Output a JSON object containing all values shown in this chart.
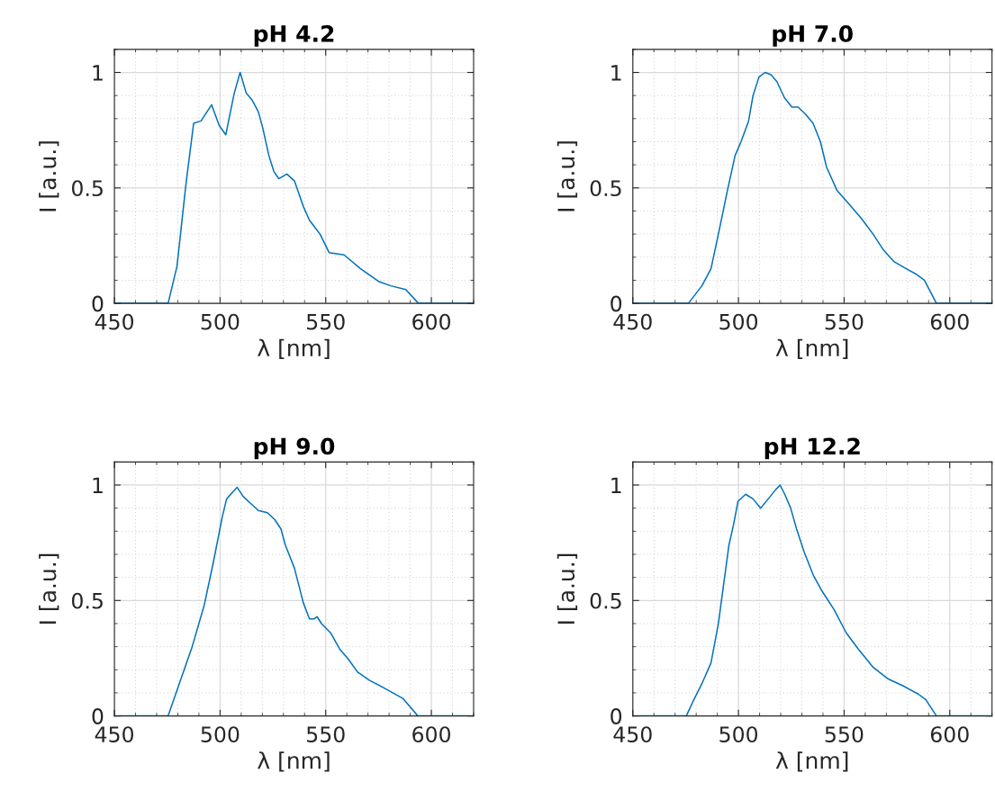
{
  "chart_data": [
    {
      "type": "line",
      "title": "pH 4.2",
      "xlabel": "λ [nm]",
      "ylabel": "I [a.u.]",
      "xlim": [
        450,
        620
      ],
      "ylim": [
        0,
        1.1
      ],
      "xticks": [
        450,
        500,
        550,
        600
      ],
      "yticks": [
        0,
        0.5,
        1
      ],
      "grid": true,
      "series": [
        {
          "color": "#0072bd",
          "x": [
            450,
            475.4,
            479.6,
            483.9,
            487.5,
            491,
            496,
            499.6,
            502.7,
            506.7,
            509.5,
            512.4,
            515.2,
            518.1,
            520.2,
            523.1,
            525.5,
            527.8,
            531.6,
            535.2,
            539.4,
            542.3,
            547.3,
            551.6,
            558.7,
            566.5,
            575,
            580.8,
            587.9,
            593.9,
            620
          ],
          "values": [
            0,
            0,
            0.16,
            0.52,
            0.78,
            0.79,
            0.86,
            0.77,
            0.73,
            0.91,
            1.0,
            0.91,
            0.88,
            0.83,
            0.76,
            0.64,
            0.57,
            0.54,
            0.56,
            0.53,
            0.42,
            0.36,
            0.3,
            0.22,
            0.21,
            0.15,
            0.095,
            0.076,
            0.06,
            0,
            0
          ]
        }
      ]
    },
    {
      "type": "line",
      "title": "pH 7.0",
      "xlabel": "λ [nm]",
      "ylabel": "I [a.u.]",
      "xlim": [
        450,
        620
      ],
      "ylim": [
        0,
        1.1
      ],
      "xticks": [
        450,
        500,
        550,
        600
      ],
      "yticks": [
        0,
        0.5,
        1
      ],
      "grid": true,
      "series": [
        {
          "color": "#0072bd",
          "x": [
            450,
            476.3,
            482.7,
            487,
            490.5,
            494.8,
            498.4,
            501.2,
            504.8,
            506.9,
            509.7,
            512.6,
            515.4,
            518.2,
            521.8,
            525.3,
            528.2,
            531.7,
            535.3,
            538.8,
            541.7,
            546.6,
            552.3,
            558,
            563.7,
            568.7,
            573.7,
            579.4,
            584.4,
            588,
            593.7,
            620
          ],
          "values": [
            0,
            0,
            0.076,
            0.15,
            0.3,
            0.49,
            0.64,
            0.7,
            0.79,
            0.9,
            0.98,
            1.0,
            0.99,
            0.96,
            0.89,
            0.85,
            0.85,
            0.82,
            0.78,
            0.7,
            0.59,
            0.49,
            0.43,
            0.37,
            0.3,
            0.23,
            0.18,
            0.15,
            0.125,
            0.1,
            0,
            0
          ]
        }
      ]
    },
    {
      "type": "line",
      "title": "pH 9.0",
      "xlabel": "λ [nm]",
      "ylabel": "I [a.u.]",
      "xlim": [
        450,
        620
      ],
      "ylim": [
        0,
        1.1
      ],
      "xticks": [
        450,
        500,
        550,
        600
      ],
      "yticks": [
        0,
        0.5,
        1
      ],
      "grid": true,
      "series": [
        {
          "color": "#0072bd",
          "x": [
            450,
            475.4,
            481.1,
            486.8,
            492.5,
            496.7,
            501,
            503.1,
            506,
            508.1,
            511,
            514.5,
            518.1,
            522.4,
            525.9,
            528.8,
            530.9,
            535.2,
            539.4,
            542.3,
            544.4,
            545.9,
            548,
            552.3,
            556.6,
            560.8,
            565.1,
            570.8,
            577.9,
            586.5,
            593.6,
            620
          ],
          "values": [
            0,
            0,
            0.15,
            0.3,
            0.48,
            0.66,
            0.86,
            0.94,
            0.97,
            0.99,
            0.95,
            0.92,
            0.89,
            0.88,
            0.85,
            0.81,
            0.74,
            0.64,
            0.49,
            0.42,
            0.42,
            0.43,
            0.4,
            0.36,
            0.29,
            0.245,
            0.19,
            0.154,
            0.12,
            0.076,
            0,
            0
          ]
        }
      ]
    },
    {
      "type": "line",
      "title": "pH 12.2",
      "xlabel": "λ [nm]",
      "ylabel": "I [a.u.]",
      "xlim": [
        450,
        620
      ],
      "ylim": [
        0,
        1.1
      ],
      "xticks": [
        450,
        500,
        550,
        600
      ],
      "yticks": [
        0,
        0.5,
        1
      ],
      "grid": true,
      "series": [
        {
          "color": "#0072bd",
          "x": [
            450,
            475.3,
            478.5,
            482.7,
            487,
            490.5,
            492.7,
            495.5,
            497.7,
            499.8,
            503.4,
            506.9,
            510.5,
            514.1,
            517.6,
            519.7,
            521.9,
            524.7,
            527.5,
            531.1,
            535.4,
            539.6,
            545.3,
            551,
            556.7,
            563.8,
            570.9,
            578,
            585.1,
            588.7,
            593.7,
            620
          ],
          "values": [
            0,
            0,
            0.063,
            0.14,
            0.23,
            0.4,
            0.55,
            0.74,
            0.83,
            0.93,
            0.96,
            0.94,
            0.9,
            0.94,
            0.98,
            1.0,
            0.96,
            0.9,
            0.81,
            0.71,
            0.61,
            0.54,
            0.46,
            0.36,
            0.29,
            0.21,
            0.16,
            0.13,
            0.095,
            0.07,
            0,
            0
          ]
        }
      ]
    }
  ]
}
